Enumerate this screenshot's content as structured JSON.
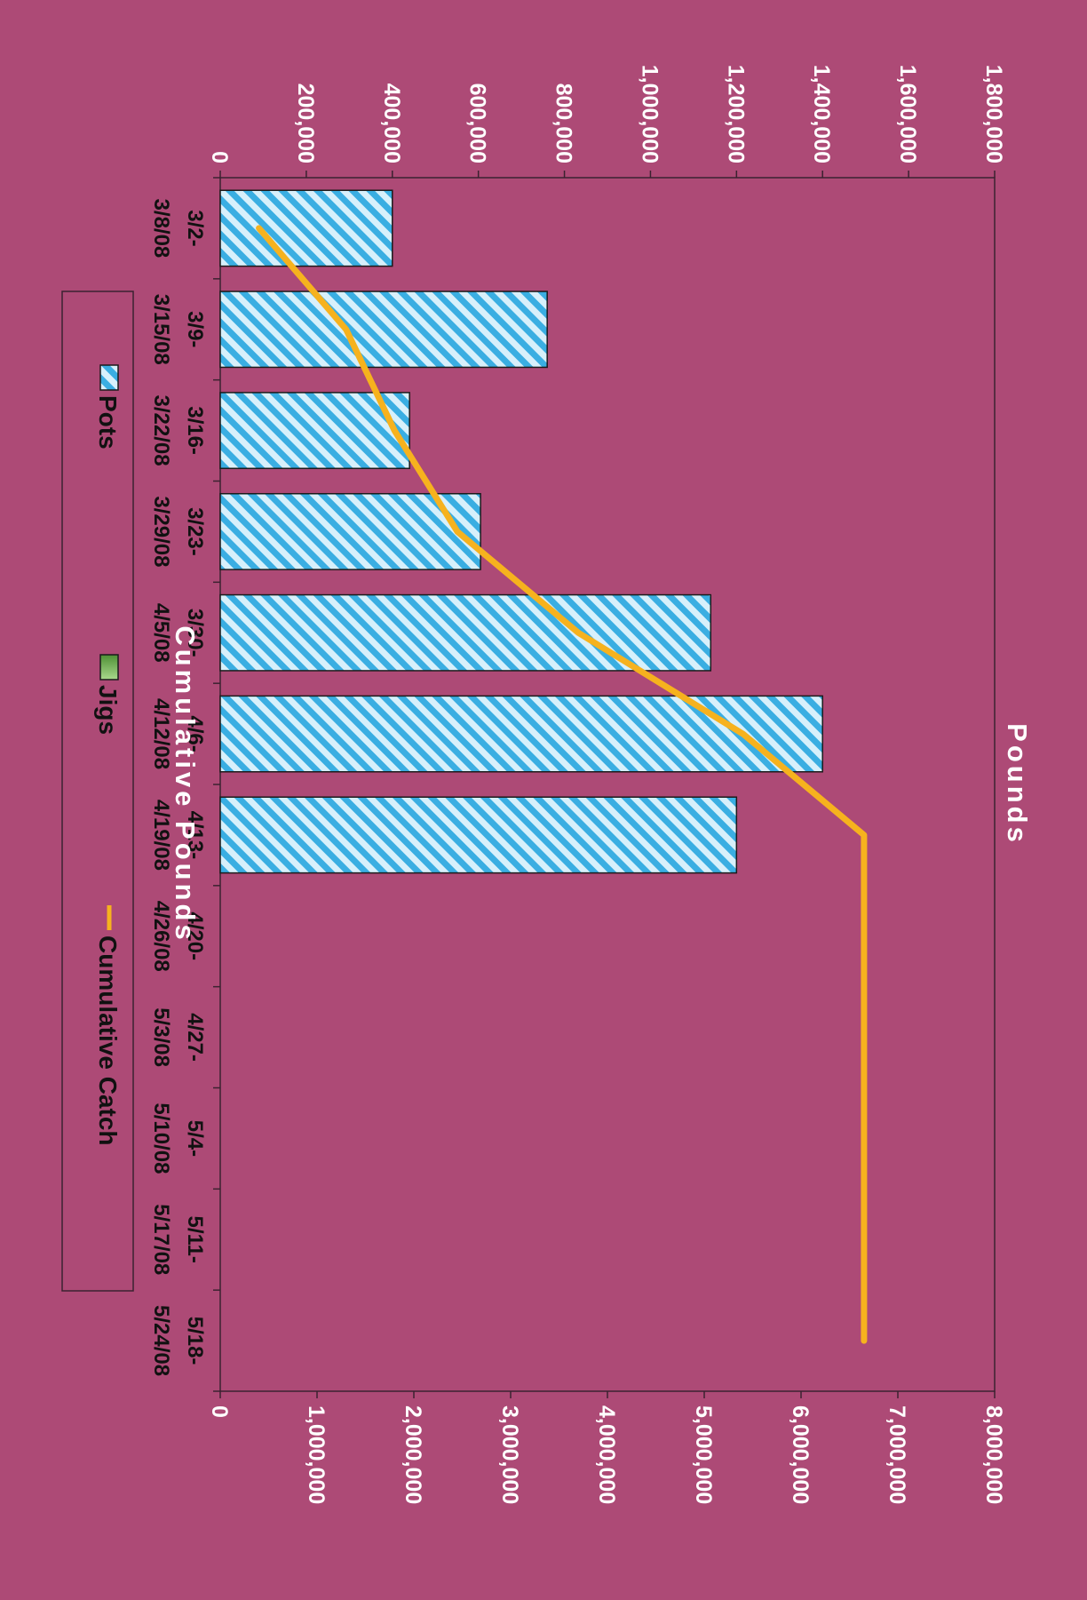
{
  "chart_data": {
    "type": "bar",
    "title": "",
    "categories": [
      [
        "3/2-",
        "3/8/08"
      ],
      [
        "3/9-",
        "3/15/08"
      ],
      [
        "3/16-",
        "3/22/08"
      ],
      [
        "3/23-",
        "3/29/08"
      ],
      [
        "3/30-",
        "4/5/08"
      ],
      [
        "4/6-",
        "4/12/08"
      ],
      [
        "4/13-",
        "4/19/08"
      ],
      [
        "4/20-",
        "4/26/08"
      ],
      [
        "4/27-",
        "5/3/08"
      ],
      [
        "5/4-",
        "5/10/08"
      ],
      [
        "5/11-",
        "5/17/08"
      ],
      [
        "5/18-",
        "5/24/08"
      ]
    ],
    "series": [
      {
        "name": "Pots",
        "type": "bar",
        "axis": "primary",
        "color": "#8fd0ee",
        "values": [
          400000,
          760000,
          440000,
          605000,
          1140000,
          1400000,
          1200000,
          0,
          0,
          0,
          0,
          0
        ]
      },
      {
        "name": "Jigs",
        "type": "bar",
        "axis": "primary",
        "color": "#7cb85a",
        "values": [
          0,
          0,
          0,
          0,
          0,
          0,
          0,
          0,
          0,
          0,
          0,
          0
        ]
      },
      {
        "name": "Cumulative Catch",
        "type": "line",
        "axis": "secondary",
        "color": "#f6b21e",
        "values": [
          400000,
          1300000,
          1800000,
          2450000,
          3700000,
          5400000,
          6650000,
          6650000,
          6650000,
          6650000,
          6650000,
          6650000
        ]
      }
    ],
    "primary_axis": {
      "label": "Pounds",
      "range": [
        0,
        1800000
      ],
      "ticks": [
        "0",
        "200,000",
        "400,000",
        "600,000",
        "800,000",
        "1,000,000",
        "1,200,000",
        "1,400,000",
        "1,600,000",
        "1,800,000"
      ]
    },
    "secondary_axis": {
      "label": "Cumulative Pounds",
      "range": [
        0,
        8000000
      ],
      "ticks": [
        "0",
        "1,000,000",
        "2,000,000",
        "3,000,000",
        "4,000,000",
        "5,000,000",
        "6,000,000",
        "7,000,000",
        "8,000,000"
      ]
    },
    "grid": false,
    "legend": {
      "position": "left",
      "entries": [
        "Pots",
        "Jigs",
        "Cumulative Catch"
      ]
    },
    "background": "#ad4a76",
    "orientation": "rotated 90 degrees clockwise"
  }
}
